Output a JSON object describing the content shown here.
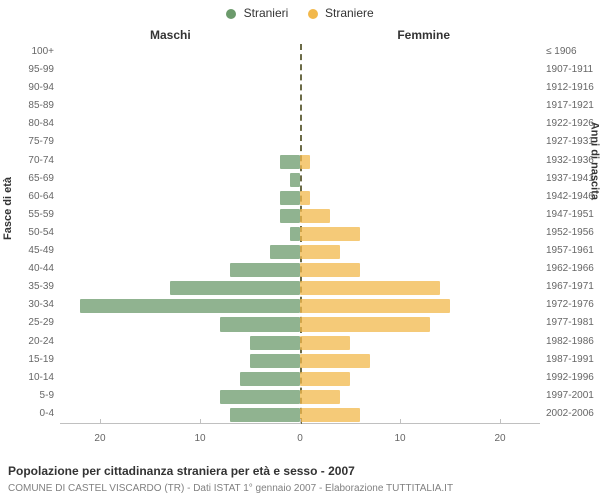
{
  "legend": {
    "male": {
      "label": "Stranieri",
      "color": "#6b9a6b"
    },
    "female": {
      "label": "Straniere",
      "color": "#f2b84b"
    }
  },
  "side_titles": {
    "left": "Maschi",
    "right": "Femmine"
  },
  "axis_titles": {
    "left": "Fasce di età",
    "right": "Anni di nascita"
  },
  "caption": "Popolazione per cittadinanza straniera per età e sesso - 2007",
  "subcaption": "COMUNE DI CASTEL VISCARDO (TR) - Dati ISTAT 1° gennaio 2007 - Elaborazione TUTTITALIA.IT",
  "chart": {
    "type": "population-pyramid",
    "x_max": 24,
    "x_ticks": [
      -20,
      -10,
      0,
      10,
      20
    ],
    "x_tick_labels": [
      "20",
      "10",
      "0",
      "10",
      "20"
    ],
    "background_color": "#ffffff",
    "grid_color": "#c0c0c0",
    "center_line_color": "#6b6b47",
    "text_color": "#333333",
    "muted_text_color": "#666666",
    "bar_opacity": 0.75,
    "rows": [
      {
        "age": "100+",
        "birth": "≤ 1906",
        "m": 0,
        "f": 0
      },
      {
        "age": "95-99",
        "birth": "1907-1911",
        "m": 0,
        "f": 0
      },
      {
        "age": "90-94",
        "birth": "1912-1916",
        "m": 0,
        "f": 0
      },
      {
        "age": "85-89",
        "birth": "1917-1921",
        "m": 0,
        "f": 0
      },
      {
        "age": "80-84",
        "birth": "1922-1926",
        "m": 0,
        "f": 0
      },
      {
        "age": "75-79",
        "birth": "1927-1931",
        "m": 0,
        "f": 0
      },
      {
        "age": "70-74",
        "birth": "1932-1936",
        "m": 2,
        "f": 1
      },
      {
        "age": "65-69",
        "birth": "1937-1941",
        "m": 1,
        "f": 0
      },
      {
        "age": "60-64",
        "birth": "1942-1946",
        "m": 2,
        "f": 1
      },
      {
        "age": "55-59",
        "birth": "1947-1951",
        "m": 2,
        "f": 3
      },
      {
        "age": "50-54",
        "birth": "1952-1956",
        "m": 1,
        "f": 6
      },
      {
        "age": "45-49",
        "birth": "1957-1961",
        "m": 3,
        "f": 4
      },
      {
        "age": "40-44",
        "birth": "1962-1966",
        "m": 7,
        "f": 6
      },
      {
        "age": "35-39",
        "birth": "1967-1971",
        "m": 13,
        "f": 14
      },
      {
        "age": "30-34",
        "birth": "1972-1976",
        "m": 22,
        "f": 15
      },
      {
        "age": "25-29",
        "birth": "1977-1981",
        "m": 8,
        "f": 13
      },
      {
        "age": "20-24",
        "birth": "1982-1986",
        "m": 5,
        "f": 5
      },
      {
        "age": "15-19",
        "birth": "1987-1991",
        "m": 5,
        "f": 7
      },
      {
        "age": "10-14",
        "birth": "1992-1996",
        "m": 6,
        "f": 5
      },
      {
        "age": "5-9",
        "birth": "1997-2001",
        "m": 8,
        "f": 4
      },
      {
        "age": "0-4",
        "birth": "2002-2006",
        "m": 7,
        "f": 6
      }
    ]
  }
}
